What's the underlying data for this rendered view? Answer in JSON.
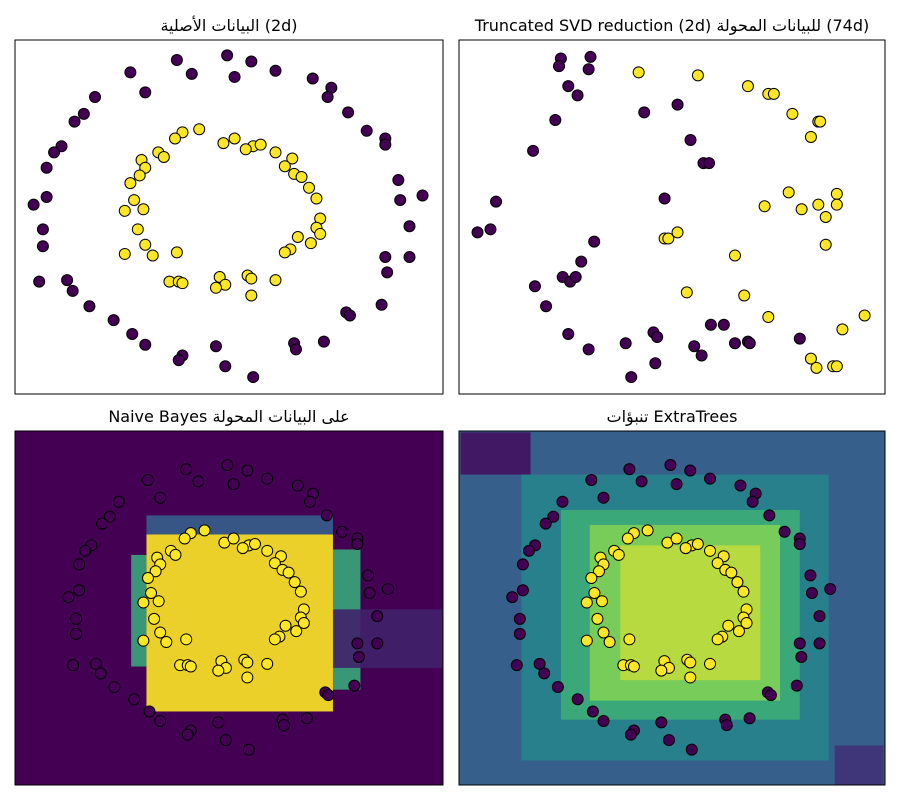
{
  "chart_data": [
    {
      "type": "scatter",
      "title": "البيانات الأصلية (2d)",
      "xlim": [
        -1.15,
        1.15
      ],
      "ylim": [
        -1.15,
        1.15
      ],
      "series": [
        {
          "color": "#440154",
          "x": [
            -0.53,
            -0.28,
            -0.2,
            -0.01,
            0.03,
            0.12,
            0.25,
            0.45,
            0.55,
            0.53,
            -0.72,
            -0.78,
            -0.83,
            -0.45,
            0.64,
            0.74,
            0.84,
            0.84,
            -0.9,
            -0.94,
            -0.98,
            0.91,
            1.04,
            -0.98,
            -1.05,
            0.92,
            -1.0,
            0.97,
            -1.0,
            0.84,
            0.97,
            0.85,
            -1.02,
            -0.87,
            -0.84,
            0.82,
            -0.75,
            0.63,
            0.65,
            -0.62,
            -0.52,
            0.51,
            -0.45,
            0.35,
            0.36,
            -0.07,
            -0.25,
            -0.27,
            -0.02,
            0.13
          ],
          "y": [
            0.94,
            1.02,
            0.93,
            1.05,
            0.91,
            1.01,
            0.95,
            0.9,
            0.84,
            0.78,
            0.78,
            0.67,
            0.62,
            0.81,
            0.68,
            0.56,
            0.51,
            0.47,
            0.46,
            0.42,
            0.32,
            0.24,
            0.14,
            0.13,
            0.08,
            0.11,
            -0.08,
            -0.06,
            -0.19,
            -0.26,
            -0.26,
            -0.36,
            -0.42,
            -0.41,
            -0.48,
            -0.57,
            -0.58,
            -0.62,
            -0.64,
            -0.67,
            -0.76,
            -0.81,
            -0.83,
            -0.82,
            -0.86,
            -0.84,
            -0.9,
            -0.93,
            -0.97,
            -1.04
          ]
        },
        {
          "color": "#fde725",
          "x": [
            -0.16,
            -0.25,
            -0.29,
            -0.03,
            0.03,
            0.13,
            0.17,
            0.09,
            0.25,
            0.34,
            0.3,
            -0.38,
            -0.35,
            -0.47,
            -0.45,
            -0.48,
            -0.53,
            0.35,
            0.39,
            0.43,
            -0.51,
            0.47,
            -0.56,
            -0.46,
            0.49,
            -0.49,
            0.47,
            0.49,
            -0.45,
            0.37,
            0.33,
            0.44,
            0.3,
            -0.56,
            -0.41,
            -0.28,
            -0.05,
            0.1,
            0.12,
            0.25,
            -0.32,
            -0.27,
            -0.25,
            -0.02,
            -0.07,
            0.12
          ],
          "y": [
            0.57,
            0.55,
            0.51,
            0.48,
            0.51,
            0.46,
            0.47,
            0.44,
            0.42,
            0.38,
            0.33,
            0.42,
            0.39,
            0.37,
            0.32,
            0.27,
            0.22,
            0.28,
            0.26,
            0.19,
            0.11,
            0.12,
            0.04,
            0.05,
            -0.01,
            -0.08,
            -0.07,
            -0.11,
            -0.18,
            -0.13,
            -0.21,
            -0.17,
            -0.23,
            -0.24,
            -0.25,
            -0.23,
            -0.39,
            -0.38,
            -0.4,
            -0.41,
            -0.42,
            -0.42,
            -0.43,
            -0.44,
            -0.46,
            -0.51
          ]
        }
      ]
    },
    {
      "type": "scatter",
      "title": "Truncated SVD reduction (2d) للبيانات المحولة (74d)",
      "xlim": [
        -1.15,
        1.15
      ],
      "ylim": [
        -1.15,
        1.15
      ],
      "series": [
        {
          "color": "#440154",
          "x": [
            -0.6,
            -0.44,
            -0.61,
            -0.45,
            -0.56,
            -0.51,
            -0.63,
            -0.15,
            0.03,
            -0.75,
            0.1,
            0.17,
            0.2,
            -0.95,
            -0.04,
            -1.05,
            -0.98,
            -0.42,
            -0.49,
            -0.59,
            -0.55,
            -0.52,
            -0.74,
            -0.68,
            -0.56,
            -0.1,
            -0.08,
            0.21,
            0.28,
            -0.45,
            -0.25,
            0.12,
            0.16,
            0.41,
            0.34,
            0.42,
            0.69,
            -0.09,
            -0.22
          ],
          "y": [
            1.03,
            1.04,
            0.98,
            0.96,
            0.85,
            0.79,
            0.63,
            0.68,
            0.73,
            0.43,
            0.5,
            0.35,
            0.35,
            0.1,
            0.12,
            -0.1,
            -0.08,
            -0.16,
            -0.29,
            -0.39,
            -0.42,
            -0.39,
            -0.45,
            -0.58,
            -0.76,
            -0.75,
            -0.78,
            -0.7,
            -0.7,
            -0.86,
            -0.82,
            -0.84,
            -0.9,
            -0.81,
            -0.82,
            -0.82,
            -0.79,
            -0.95,
            -1.04
          ]
        },
        {
          "color": "#fde725",
          "x": [
            -0.18,
            0.14,
            0.41,
            0.52,
            0.55,
            0.65,
            0.79,
            0.8,
            0.75,
            0.63,
            0.5,
            0.7,
            0.89,
            0.89,
            0.79,
            0.83,
            -0.04,
            -0.02,
            0.03,
            0.83,
            0.34,
            0.08,
            0.39,
            0.52,
            0.92,
            1.04,
            0.75,
            0.78,
            0.87,
            0.89
          ],
          "y": [
            0.94,
            0.92,
            0.85,
            0.8,
            0.8,
            0.67,
            0.62,
            0.62,
            0.52,
            0.16,
            0.07,
            0.05,
            0.15,
            0.08,
            0.08,
            0.0,
            -0.14,
            -0.14,
            -0.1,
            -0.18,
            -0.25,
            -0.49,
            -0.51,
            -0.65,
            -0.73,
            -0.64,
            -0.92,
            -0.98,
            -0.97,
            -0.97
          ]
        }
      ]
    },
    {
      "type": "scatter",
      "title": "Naive Bayes على البيانات المحولة",
      "xlim": [
        -1.4,
        1.4
      ],
      "ylim": [
        -1.3,
        1.3
      ],
      "cmap": "viridis",
      "background": 0,
      "regions": [
        {
          "x": [
            -0.64,
            -0.54
          ],
          "y": [
            -0.43,
            0.39
          ],
          "value": 0.6
        },
        {
          "x": [
            0.68,
            0.86
          ],
          "y": [
            -0.6,
            0.43
          ],
          "value": 0.6
        },
        {
          "x": [
            -0.54,
            0.68
          ],
          "y": [
            0.54,
            0.68
          ],
          "value": 0.3
        },
        {
          "x": [
            0.68,
            1.4
          ],
          "y": [
            -0.44,
            -0.01
          ],
          "value": 0.1
        },
        {
          "x": [
            -0.54,
            0.68
          ],
          "y": [
            -0.76,
            0.54
          ],
          "value": 1
        }
      ],
      "series": [
        {
          "color": "#440154",
          "x": [
            -0.53,
            -0.28,
            -0.2,
            -0.01,
            0.03,
            0.12,
            0.25,
            0.45,
            0.55,
            0.53,
            -0.72,
            -0.78,
            -0.83,
            -0.45,
            0.64,
            0.74,
            0.84,
            0.84,
            -0.9,
            -0.94,
            -0.98,
            0.91,
            1.04,
            -0.98,
            -1.05,
            0.92,
            -1.0,
            0.97,
            -1.0,
            0.84,
            0.97,
            0.85,
            -1.02,
            -0.87,
            -0.84,
            0.82,
            -0.75,
            0.63,
            0.65,
            -0.62,
            -0.52,
            0.51,
            -0.45,
            0.35,
            0.36,
            -0.07,
            -0.25,
            -0.27,
            -0.02,
            0.13
          ],
          "y": [
            0.94,
            1.02,
            0.93,
            1.05,
            0.91,
            1.01,
            0.95,
            0.9,
            0.84,
            0.78,
            0.78,
            0.67,
            0.62,
            0.81,
            0.68,
            0.56,
            0.51,
            0.47,
            0.46,
            0.42,
            0.32,
            0.24,
            0.14,
            0.13,
            0.08,
            0.11,
            -0.08,
            -0.06,
            -0.19,
            -0.26,
            -0.26,
            -0.36,
            -0.42,
            -0.41,
            -0.48,
            -0.57,
            -0.58,
            -0.62,
            -0.64,
            -0.67,
            -0.76,
            -0.81,
            -0.83,
            -0.82,
            -0.86,
            -0.84,
            -0.9,
            -0.93,
            -0.97,
            -1.04
          ]
        },
        {
          "color": "#fde725",
          "x": [
            -0.16,
            -0.25,
            -0.29,
            -0.03,
            0.03,
            0.13,
            0.17,
            0.09,
            0.25,
            0.34,
            0.3,
            -0.38,
            -0.35,
            -0.47,
            -0.45,
            -0.48,
            -0.53,
            0.35,
            0.39,
            0.43,
            -0.51,
            0.47,
            -0.56,
            -0.46,
            0.49,
            -0.49,
            0.47,
            0.49,
            -0.45,
            0.37,
            0.33,
            0.44,
            0.3,
            -0.56,
            -0.41,
            -0.28,
            -0.05,
            0.1,
            0.12,
            0.25,
            -0.32,
            -0.27,
            -0.25,
            -0.02,
            -0.07,
            0.12
          ],
          "y": [
            0.57,
            0.55,
            0.51,
            0.48,
            0.51,
            0.46,
            0.47,
            0.44,
            0.42,
            0.38,
            0.33,
            0.42,
            0.39,
            0.37,
            0.32,
            0.27,
            0.22,
            0.28,
            0.26,
            0.19,
            0.11,
            0.12,
            0.04,
            0.05,
            -0.01,
            -0.08,
            -0.07,
            -0.11,
            -0.18,
            -0.13,
            -0.21,
            -0.17,
            -0.23,
            -0.24,
            -0.25,
            -0.23,
            -0.39,
            -0.38,
            -0.4,
            -0.41,
            -0.42,
            -0.42,
            -0.43,
            -0.44,
            -0.46,
            -0.51
          ]
        }
      ]
    },
    {
      "type": "scatter",
      "title": "تنبؤات ExtraTrees",
      "xlim": [
        -1.4,
        1.4
      ],
      "ylim": [
        -1.3,
        1.3
      ],
      "cmap": "viridis",
      "background": 0.3,
      "regions": [
        {
          "x": [
            -1.39,
            -0.93
          ],
          "y": [
            0.98,
            1.29
          ],
          "value": 0.05
        },
        {
          "x": [
            1.07,
            1.39
          ],
          "y": [
            -1.3,
            -1.01
          ],
          "value": 0.15
        },
        {
          "x": [
            -0.99,
            1.03
          ],
          "y": [
            -1.12,
            0.98
          ],
          "value": 0.45
        },
        {
          "x": [
            -0.73,
            0.84
          ],
          "y": [
            -0.82,
            0.72
          ],
          "value": 0.62
        },
        {
          "x": [
            -0.54,
            0.71
          ],
          "y": [
            -0.68,
            0.61
          ],
          "value": 0.8
        },
        {
          "x": [
            -0.34,
            0.58
          ],
          "y": [
            -0.53,
            0.46
          ],
          "value": 0.9
        }
      ],
      "series": [
        {
          "color": "#440154",
          "x": [
            -0.53,
            -0.28,
            -0.2,
            -0.01,
            0.03,
            0.12,
            0.25,
            0.45,
            0.55,
            0.53,
            -0.72,
            -0.78,
            -0.83,
            -0.45,
            0.64,
            0.74,
            0.84,
            0.84,
            -0.9,
            -0.94,
            -0.98,
            0.91,
            1.04,
            -0.98,
            -1.05,
            0.92,
            -1.0,
            0.97,
            -1.0,
            0.84,
            0.97,
            0.85,
            -1.02,
            -0.87,
            -0.84,
            0.82,
            -0.75,
            0.63,
            0.65,
            -0.62,
            -0.52,
            0.51,
            -0.45,
            0.35,
            0.36,
            -0.07,
            -0.25,
            -0.27,
            -0.02,
            0.13
          ],
          "y": [
            0.94,
            1.02,
            0.93,
            1.05,
            0.91,
            1.01,
            0.95,
            0.9,
            0.84,
            0.78,
            0.78,
            0.67,
            0.62,
            0.81,
            0.68,
            0.56,
            0.51,
            0.47,
            0.46,
            0.42,
            0.32,
            0.24,
            0.14,
            0.13,
            0.08,
            0.11,
            -0.08,
            -0.06,
            -0.19,
            -0.26,
            -0.26,
            -0.36,
            -0.42,
            -0.41,
            -0.48,
            -0.57,
            -0.58,
            -0.62,
            -0.64,
            -0.67,
            -0.76,
            -0.81,
            -0.83,
            -0.82,
            -0.86,
            -0.84,
            -0.9,
            -0.93,
            -0.97,
            -1.04
          ]
        },
        {
          "color": "#fde725",
          "x": [
            -0.16,
            -0.25,
            -0.29,
            -0.03,
            0.03,
            0.13,
            0.17,
            0.09,
            0.25,
            0.34,
            0.3,
            -0.38,
            -0.35,
            -0.47,
            -0.45,
            -0.48,
            -0.53,
            0.35,
            0.39,
            0.43,
            -0.51,
            0.47,
            -0.56,
            -0.46,
            0.49,
            -0.49,
            0.47,
            0.49,
            -0.45,
            0.37,
            0.33,
            0.44,
            0.3,
            -0.56,
            -0.41,
            -0.28,
            -0.05,
            0.1,
            0.12,
            0.25,
            -0.32,
            -0.27,
            -0.25,
            -0.02,
            -0.07,
            0.12
          ],
          "y": [
            0.57,
            0.55,
            0.51,
            0.48,
            0.51,
            0.46,
            0.47,
            0.44,
            0.42,
            0.38,
            0.33,
            0.42,
            0.39,
            0.37,
            0.32,
            0.27,
            0.22,
            0.28,
            0.26,
            0.19,
            0.11,
            0.12,
            0.04,
            0.05,
            -0.01,
            -0.08,
            -0.07,
            -0.11,
            -0.18,
            -0.13,
            -0.21,
            -0.17,
            -0.23,
            -0.24,
            -0.25,
            -0.23,
            -0.39,
            -0.38,
            -0.4,
            -0.41,
            -0.42,
            -0.42,
            -0.43,
            -0.44,
            -0.46,
            -0.51
          ]
        }
      ]
    }
  ]
}
